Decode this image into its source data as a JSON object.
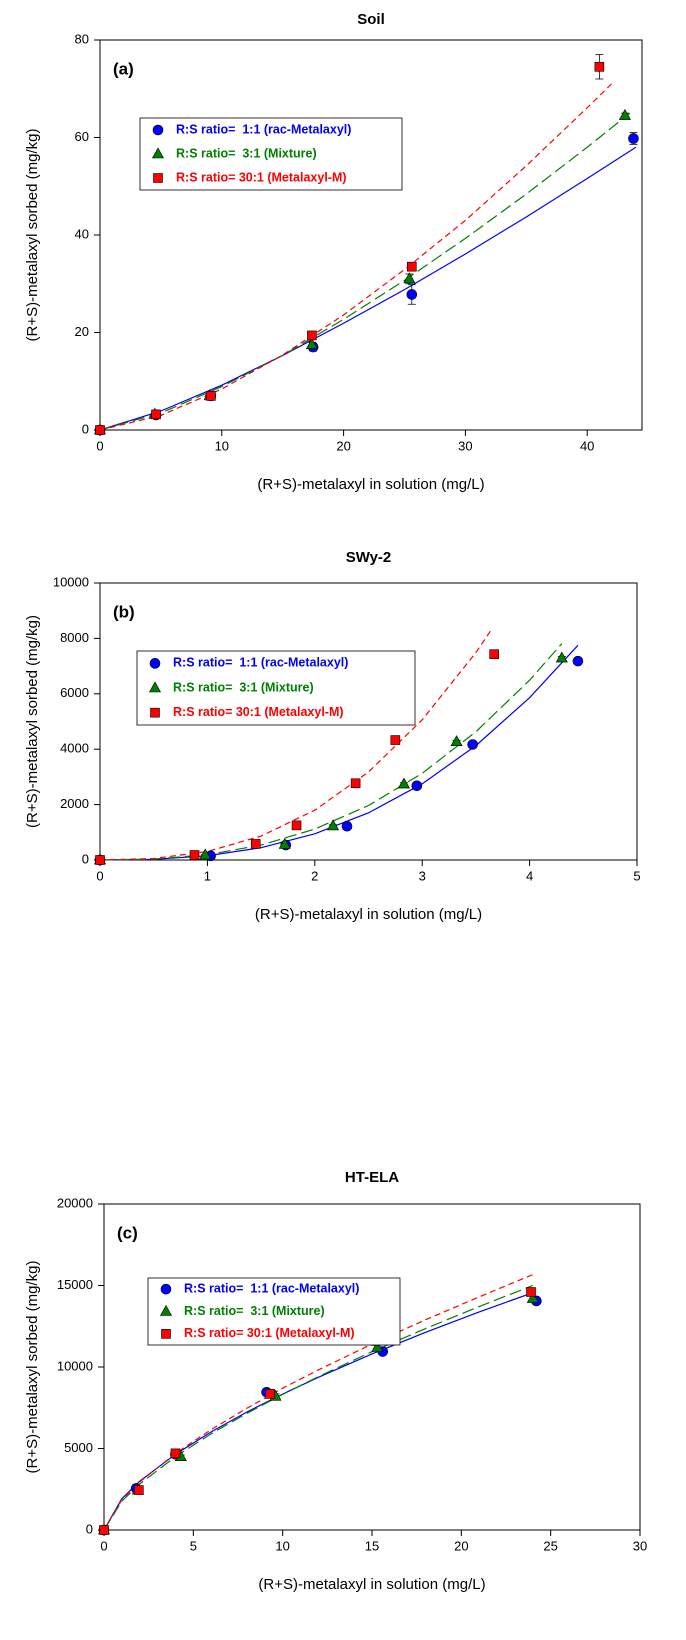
{
  "chart_data": [
    {
      "type": "scatter",
      "title": "Soil",
      "panel_label": "(a)",
      "x_label": "(R+S)-metalaxyl in solution (mg/L)",
      "y_label": "(R+S)-metalaxyl sorbed (mg/kg)",
      "xlim": [
        0,
        44.5
      ],
      "xticks": [
        0,
        10,
        20,
        30,
        40
      ],
      "ylim": [
        0,
        80
      ],
      "yticks": [
        0,
        20,
        40,
        60,
        80
      ],
      "series": [
        {
          "name": "R:S ratio=  1:1 (rac-Metalaxyl)",
          "color": "#0000ff",
          "marker": "circle",
          "line_style": "solid",
          "x": [
            0,
            4.6,
            9.1,
            17.5,
            25.6,
            43.8
          ],
          "values": [
            0,
            3.1,
            7.0,
            17,
            27.8,
            59.8
          ],
          "errors": [
            0,
            0.3,
            0.4,
            0.8,
            2.0,
            1.2
          ],
          "fit_x": [
            0,
            5,
            10,
            15,
            20,
            25,
            30,
            35,
            40,
            44
          ],
          "fit_values": [
            0,
            3.9,
            9.2,
            15.3,
            21.9,
            28.8,
            36.1,
            43.7,
            51.6,
            58
          ]
        },
        {
          "name": "R:S ratio=  3:1 (Mixture)",
          "color": "#008000",
          "marker": "triangle",
          "line_style": "long-dash",
          "x": [
            0,
            4.5,
            9.0,
            17.4,
            25.4,
            43.1
          ],
          "values": [
            0,
            3.2,
            7.0,
            17.5,
            31.0,
            64.5
          ],
          "errors": [
            0,
            0.2,
            0.3,
            0.5,
            1.0,
            0.5
          ],
          "fit_x": [
            0,
            5,
            10,
            15,
            20,
            25,
            30,
            35,
            40,
            43.5
          ],
          "fit_values": [
            0,
            3.5,
            8.9,
            15.3,
            22.7,
            30.7,
            39.3,
            48.4,
            58,
            65
          ]
        },
        {
          "name": "R:S ratio= 30:1 (Metalaxyl-M)",
          "color": "#ff0000",
          "marker": "square",
          "line_style": "dash",
          "x": [
            0,
            4.6,
            9.1,
            17.4,
            25.6,
            41
          ],
          "values": [
            0,
            3.2,
            7.0,
            19.4,
            33.5,
            74.5
          ],
          "errors": [
            0,
            0.3,
            0.3,
            0.6,
            0.8,
            2.5
          ],
          "fit_x": [
            0,
            5,
            10,
            15,
            20,
            25,
            30,
            35,
            40,
            42
          ],
          "fit_values": [
            0,
            3.0,
            8.4,
            15.4,
            23.6,
            32.9,
            43.0,
            54.2,
            66.1,
            71
          ]
        }
      ]
    },
    {
      "type": "scatter",
      "title": "SWy-2",
      "panel_label": "(b)",
      "x_label": "(R+S)-metalaxyl in solution (mg/L)",
      "y_label": "(R+S)-metalaxyl sorbed (mg/kg)",
      "xlim": [
        0,
        5
      ],
      "xticks": [
        0,
        1,
        2,
        3,
        4,
        5
      ],
      "ylim": [
        0,
        10000
      ],
      "yticks": [
        0,
        2000,
        4000,
        6000,
        8000,
        10000
      ],
      "series": [
        {
          "name": "R:S ratio=  1:1 (rac-Metalaxyl)",
          "color": "#0000ff",
          "marker": "circle",
          "line_style": "solid",
          "x": [
            0,
            1.03,
            1.73,
            2.3,
            2.95,
            3.47,
            4.45
          ],
          "values": [
            0,
            150,
            540,
            1220,
            2680,
            4170,
            7180
          ],
          "errors": [
            0,
            20,
            40,
            50,
            60,
            50,
            60
          ],
          "fit_x": [
            0,
            0.5,
            1,
            1.5,
            2,
            2.5,
            3,
            3.5,
            4,
            4.45
          ],
          "fit_values": [
            0,
            25,
            153,
            444,
            947,
            1702,
            2750,
            4130,
            5860,
            7750
          ]
        },
        {
          "name": "R:S ratio=  3:1 (Mixture)",
          "color": "#008000",
          "marker": "triangle",
          "line_style": "long-dash",
          "x": [
            0,
            0.98,
            1.72,
            2.17,
            2.83,
            3.32,
            4.3
          ],
          "values": [
            0,
            180,
            560,
            1230,
            2740,
            4270,
            7290
          ],
          "errors": [
            0,
            20,
            30,
            40,
            50,
            50,
            60
          ],
          "fit_x": [
            0,
            0.5,
            1,
            1.5,
            2,
            2.5,
            3,
            3.5,
            4,
            4.3
          ],
          "fit_values": [
            0,
            33,
            192,
            538,
            1117,
            1967,
            3130,
            4630,
            6490,
            7810
          ]
        },
        {
          "name": "R:S ratio= 30:1 (Metalaxyl-M)",
          "color": "#ff0000",
          "marker": "square",
          "line_style": "dash",
          "x": [
            0,
            0.88,
            1.45,
            1.83,
            2.38,
            2.75,
            3.67
          ],
          "values": [
            0,
            180,
            580,
            1250,
            2770,
            4330,
            7430
          ],
          "errors": [
            0,
            20,
            30,
            50,
            60,
            60,
            100
          ],
          "fit_x": [
            0,
            0.5,
            1,
            1.5,
            2,
            2.5,
            3,
            3.5,
            3.65
          ],
          "fit_values": [
            0,
            52,
            307,
            863,
            1799,
            3178,
            5060,
            7490,
            8350
          ]
        }
      ]
    },
    {
      "type": "scatter",
      "title": "HT-ELA",
      "panel_label": "(c)",
      "x_label": "(R+S)-metalaxyl in solution (mg/L)",
      "y_label": "(R+S)-metalaxyl sorbed (mg/kg)",
      "xlim": [
        0,
        30
      ],
      "xticks": [
        0,
        5,
        10,
        15,
        20,
        25,
        30
      ],
      "ylim": [
        0,
        20000
      ],
      "yticks": [
        0,
        5000,
        10000,
        15000,
        20000
      ],
      "series": [
        {
          "name": "R:S ratio=  1:1 (rac-Metalaxyl)",
          "color": "#0000ff",
          "marker": "circle",
          "line_style": "solid",
          "x": [
            0,
            1.8,
            4.0,
            9.1,
            15.6,
            24.2
          ],
          "values": [
            0,
            2550,
            4650,
            8450,
            10950,
            14050
          ],
          "errors": [
            0,
            100,
            150,
            150,
            150,
            150
          ],
          "fit_x": [
            0,
            1,
            2,
            4,
            6,
            8,
            10,
            12,
            15,
            18,
            21,
            24
          ],
          "fit_values": [
            0,
            1924,
            2992,
            4650,
            6023,
            7240,
            8340,
            9370,
            10800,
            12130,
            13380,
            14560
          ]
        },
        {
          "name": "R:S ratio=  3:1 (Mixture)",
          "color": "#008000",
          "marker": "triangle",
          "line_style": "long-dash",
          "x": [
            0,
            1.9,
            4.3,
            9.6,
            15.3,
            24.0
          ],
          "values": [
            0,
            2450,
            4500,
            8200,
            11200,
            14200
          ],
          "errors": [
            0,
            100,
            100,
            150,
            150,
            150
          ],
          "fit_x": [
            0,
            1,
            2,
            4,
            6,
            8,
            10,
            12,
            15,
            18,
            21,
            24
          ],
          "fit_values": [
            0,
            1772,
            2823,
            4500,
            5906,
            7160,
            8320,
            9410,
            10940,
            12360,
            13710,
            15000
          ]
        },
        {
          "name": "R:S ratio= 30:1 (Metalaxyl-M)",
          "color": "#ff0000",
          "marker": "square",
          "line_style": "dash",
          "x": [
            0,
            1.95,
            4.0,
            9.3,
            15.2,
            23.9
          ],
          "values": [
            0,
            2450,
            4700,
            8350,
            11600,
            14600
          ],
          "errors": [
            0,
            100,
            150,
            150,
            200,
            200
          ],
          "fit_x": [
            0,
            1,
            2,
            4,
            6,
            8,
            10,
            12,
            15,
            18,
            21,
            24
          ],
          "fit_values": [
            0,
            1850,
            2947,
            4700,
            6160,
            7470,
            8700,
            9820,
            11410,
            12900,
            14300,
            15670
          ]
        }
      ]
    }
  ]
}
